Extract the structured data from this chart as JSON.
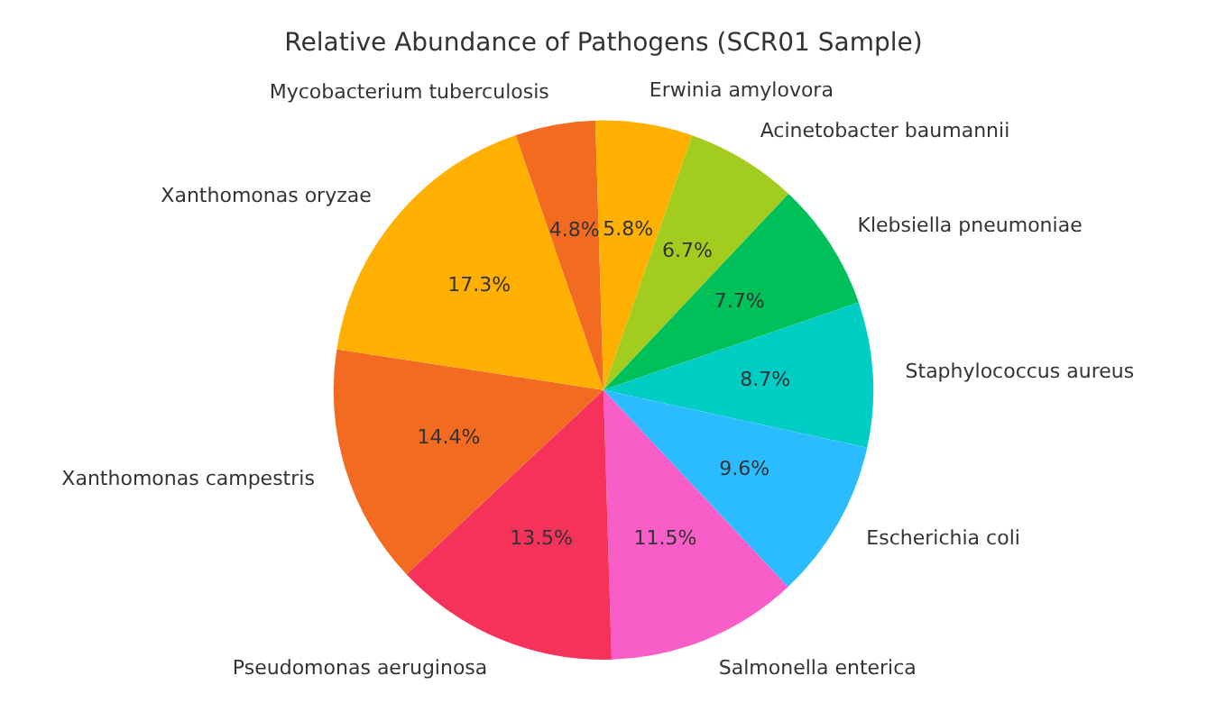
{
  "chart_data": {
    "type": "pie",
    "title": "Relative Abundance of Pathogens (SCR01 Sample)",
    "categories": [
      "Mycobacterium tuberculosis",
      "Erwinia amylovora",
      "Acinetobacter baumannii",
      "Klebsiella pneumoniae",
      "Staphylococcus aureus",
      "Escherichia coli",
      "Salmonella enterica",
      "Pseudomonas aeruginosa",
      "Xanthomonas campestris",
      "Xanthomonas oryzae"
    ],
    "values": [
      4.8,
      5.8,
      6.7,
      7.7,
      8.7,
      9.6,
      11.5,
      13.5,
      14.4,
      17.3
    ],
    "colors": [
      "#f26b21",
      "#ffb000",
      "#a2cd1e",
      "#00c05a",
      "#00cdc4",
      "#2bbcff",
      "#f95ec8",
      "#f5335a",
      "#f26b21",
      "#ffb000"
    ],
    "value_labels": [
      "4.8%",
      "5.8%",
      "6.7%",
      "7.7%",
      "8.7%",
      "9.6%",
      "11.5%",
      "13.5%",
      "14.4%",
      "17.3%"
    ],
    "legend": false
  }
}
